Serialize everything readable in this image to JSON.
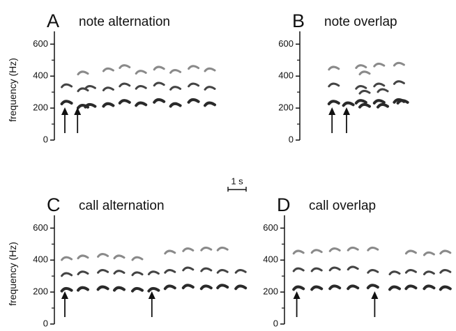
{
  "chart_data": [
    {
      "type": "scatter",
      "letter": "A",
      "title": "note alternation",
      "ylabel": "frequency (Hz)",
      "x": [
        0.6,
        1.5,
        1.9,
        2.9,
        3.8,
        4.7,
        5.7,
        6.6,
        7.6,
        8.5
      ],
      "series": [
        {
          "color": "#2a2a2a",
          "values": [
            235,
            210,
            215,
            220,
            240,
            225,
            245,
            220,
            245,
            225
          ]
        },
        {
          "color": "#444444",
          "values": [
            340,
            315,
            330,
            320,
            345,
            330,
            350,
            325,
            345,
            325
          ]
        },
        {
          "color": "#8a8a8a",
          "values": [
            null,
            420,
            null,
            440,
            460,
            425,
            450,
            430,
            455,
            440
          ]
        }
      ],
      "arrows": [
        0.5,
        1.2
      ],
      "xlim": [
        0,
        10.5
      ],
      "ylim": [
        0,
        680
      ],
      "yticks": [
        0,
        200,
        400,
        600
      ],
      "yminor": [
        100,
        300,
        500
      ]
    },
    {
      "type": "scatter",
      "letter": "B",
      "title": "note overlap",
      "x": [
        1.8,
        2.6,
        3.3,
        3.5,
        4.3,
        4.5,
        5.4,
        5.6
      ],
      "series": [
        {
          "color": "#2a2a2a",
          "values": [
            235,
            225,
            240,
            215,
            240,
            215,
            245,
            240
          ]
        },
        {
          "color": "#444444",
          "values": [
            345,
            null,
            330,
            300,
            345,
            310,
            360,
            null
          ]
        },
        {
          "color": "#8a8a8a",
          "values": [
            450,
            null,
            460,
            420,
            470,
            null,
            475,
            null
          ]
        }
      ],
      "arrows": [
        1.7,
        2.5
      ],
      "xlim": [
        0,
        10.5
      ],
      "ylim": [
        0,
        680
      ],
      "yticks": [
        0,
        200,
        400,
        600
      ],
      "yminor": [
        100,
        300,
        500
      ]
    },
    {
      "type": "scatter",
      "letter": "C",
      "title": "call alternation",
      "ylabel": "frequency (Hz)",
      "x": [
        0.6,
        1.5,
        2.6,
        3.5,
        4.5,
        5.4,
        6.3,
        7.3,
        8.3,
        9.2,
        10.2
      ],
      "series": [
        {
          "color": "#2a2a2a",
          "values": [
            215,
            220,
            225,
            220,
            215,
            215,
            230,
            235,
            230,
            235,
            230
          ]
        },
        {
          "color": "#444444",
          "values": [
            310,
            320,
            330,
            325,
            315,
            320,
            330,
            345,
            340,
            330,
            330
          ]
        },
        {
          "color": "#8a8a8a",
          "values": [
            410,
            420,
            430,
            420,
            410,
            null,
            450,
            465,
            470,
            470,
            null
          ]
        }
      ],
      "arrows": [
        0.5,
        5.3
      ],
      "xlim": [
        0,
        10.5
      ],
      "ylim": [
        0,
        680
      ],
      "yticks": [
        0,
        200,
        400,
        600
      ],
      "yminor": [
        100,
        300,
        500
      ]
    },
    {
      "type": "scatter",
      "letter": "D",
      "title": "call overlap",
      "x": [
        0.7,
        1.7,
        2.7,
        3.7,
        4.8,
        6.0,
        6.9,
        7.9,
        8.8
      ],
      "series": [
        {
          "color": "#2a2a2a",
          "values": [
            225,
            225,
            230,
            230,
            235,
            225,
            230,
            230,
            225
          ]
        },
        {
          "color": "#444444",
          "values": [
            340,
            340,
            345,
            350,
            330,
            320,
            330,
            320,
            330
          ]
        },
        {
          "color": "#8a8a8a",
          "values": [
            450,
            455,
            465,
            470,
            470,
            null,
            450,
            440,
            450
          ]
        }
      ],
      "arrows": [
        0.6,
        4.9
      ],
      "xlim": [
        0,
        10.5
      ],
      "ylim": [
        0,
        680
      ],
      "yticks": [
        0,
        200,
        400,
        600
      ],
      "yminor": [
        100,
        300,
        500
      ]
    }
  ],
  "scale_bar": {
    "label": "1 s",
    "value": 1
  }
}
